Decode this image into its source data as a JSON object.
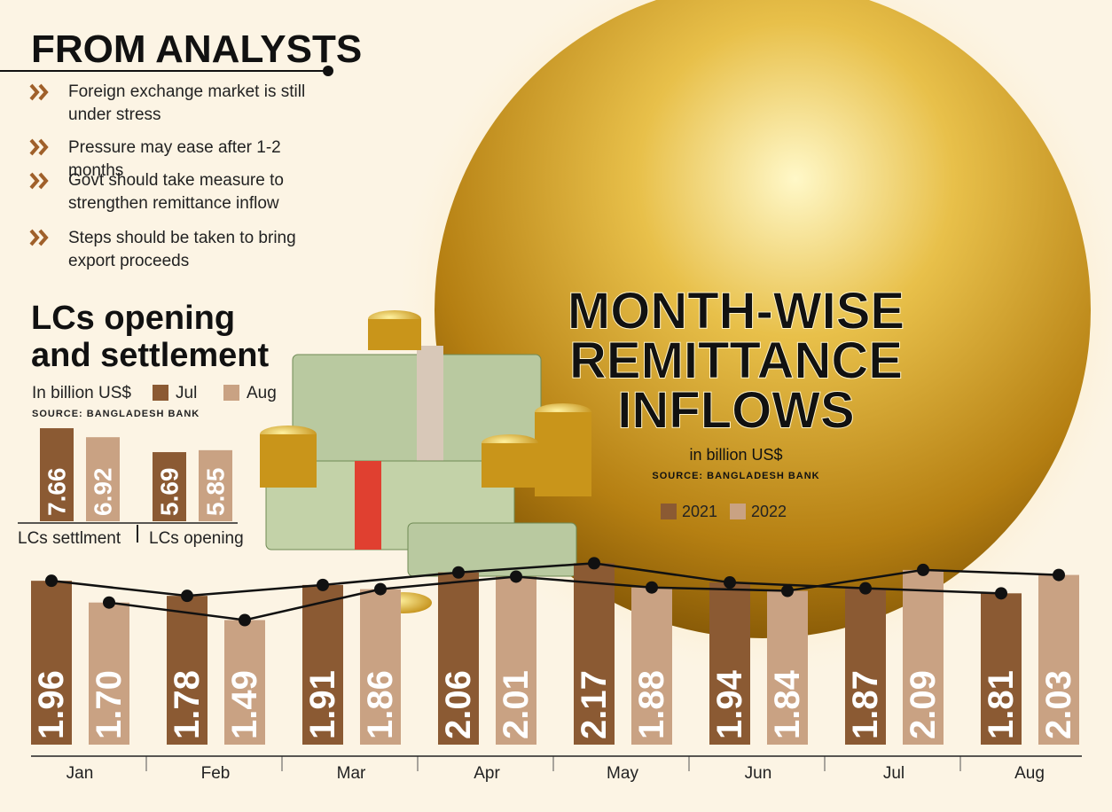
{
  "analysts": {
    "title": "FROM ANALYSTS",
    "points": [
      "Foreign exchange market is still under stress",
      "Pressure may ease after 1-2 months",
      "Govt should take measure to strengthen remittance inflow",
      "Steps should be taken to bring export proceeds"
    ]
  },
  "chart_data": [
    {
      "type": "bar",
      "title": "LCs opening and settlement",
      "subtitle": "In billion US$",
      "source": "SOURCE: BANGLADESH BANK",
      "categories": [
        "LCs settlment",
        "LCs opening"
      ],
      "series": [
        {
          "name": "Jul",
          "color": "#8b5a33",
          "values": [
            7.66,
            5.69
          ]
        },
        {
          "name": "Aug",
          "color": "#c9a283",
          "values": [
            6.92,
            5.85
          ]
        }
      ]
    },
    {
      "type": "bar",
      "title": [
        "MONTH-WISE",
        "REMITTANCE",
        "INFLOWS"
      ],
      "subtitle": "in billion US$",
      "source": "SOURCE: BANGLADESH BANK",
      "categories": [
        "Jan",
        "Feb",
        "Mar",
        "Apr",
        "May",
        "Jun",
        "Jul",
        "Aug"
      ],
      "series": [
        {
          "name": "2021",
          "color": "#8b5a33",
          "values": [
            1.96,
            1.78,
            1.91,
            2.06,
            2.17,
            1.94,
            1.87,
            1.81
          ]
        },
        {
          "name": "2022",
          "color": "#c9a283",
          "values": [
            1.7,
            1.49,
            1.86,
            2.01,
            1.88,
            1.84,
            2.09,
            2.03
          ],
          "value_labels": [
            "1.70",
            "1.49",
            "1.86",
            "2.01",
            "1.88",
            "1.84",
            "2.09",
            "2.03"
          ]
        }
      ]
    }
  ]
}
